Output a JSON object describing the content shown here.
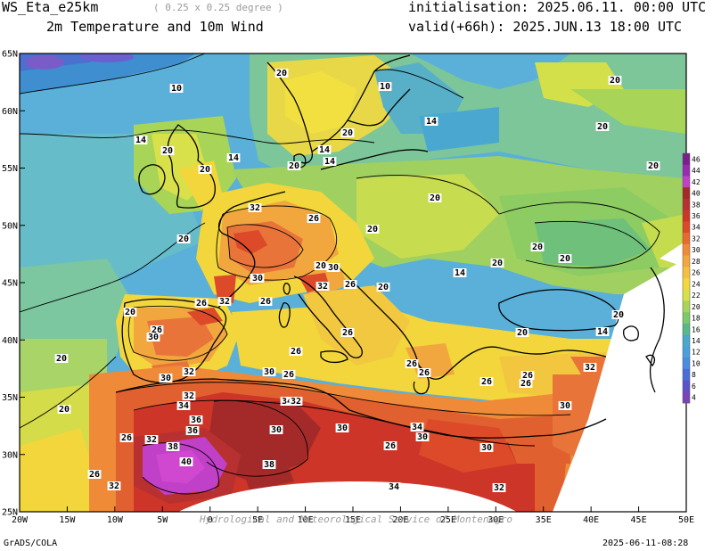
{
  "header": {
    "model": "WS_Eta_e25km",
    "resolution": "( 0.25 x 0.25 degree )",
    "product": "2m Temperature and 10m Wind",
    "initialisation": "initialisation: 2025.06.11. 00:00 UTC",
    "valid": "valid(+66h): 2025.JUN.13 18:00 UTC"
  },
  "footer": {
    "left": "GrADS/COLA",
    "right": "2025-06-11-08:28",
    "watermark": "Hydrological and Meteorological Service of Montenegro"
  },
  "axes": {
    "lat_labels": [
      "65N",
      "60N",
      "55N",
      "50N",
      "45N",
      "40N",
      "35N",
      "30N",
      "25N"
    ],
    "lon_labels": [
      "20W",
      "15W",
      "10W",
      "5W",
      "0",
      "5E",
      "10E",
      "15E",
      "20E",
      "25E",
      "30E",
      "35E",
      "40E",
      "45E",
      "50E"
    ]
  },
  "legend": {
    "levels": [
      "46",
      "44",
      "42",
      "40",
      "38",
      "36",
      "34",
      "32",
      "30",
      "28",
      "26",
      "24",
      "22",
      "20",
      "18",
      "16",
      "14",
      "12",
      "10",
      "8",
      "6",
      "4"
    ],
    "colors": [
      "#7a1f8c",
      "#9a2ab0",
      "#c040c8",
      "#a42a2a",
      "#b83030",
      "#cc3528",
      "#dc4a2a",
      "#e86a30",
      "#ef8a38",
      "#f2a63e",
      "#f4c040",
      "#f2d83c",
      "#d8e04a",
      "#a8d458",
      "#7cc86a",
      "#58b88a",
      "#4aa8c8",
      "#4aa0dc",
      "#4a8ce0",
      "#4a6ed8",
      "#5a52c8",
      "#7a44b8"
    ]
  },
  "contour_labels": [
    {
      "text": "20"
    },
    {
      "text": "10"
    },
    {
      "text": "10"
    },
    {
      "text": "20"
    },
    {
      "text": "14"
    },
    {
      "text": "20"
    },
    {
      "text": "20"
    },
    {
      "text": "20"
    },
    {
      "text": "14"
    },
    {
      "text": "20"
    },
    {
      "text": "14"
    },
    {
      "text": "14"
    },
    {
      "text": "20"
    },
    {
      "text": "14"
    },
    {
      "text": "20"
    },
    {
      "text": "20"
    },
    {
      "text": "20"
    },
    {
      "text": "32"
    },
    {
      "text": "26"
    },
    {
      "text": "20"
    },
    {
      "text": "20"
    },
    {
      "text": "20"
    },
    {
      "text": "20"
    },
    {
      "text": "20"
    },
    {
      "text": "30"
    },
    {
      "text": "20"
    },
    {
      "text": "30"
    },
    {
      "text": "32"
    },
    {
      "text": "26"
    },
    {
      "text": "20"
    },
    {
      "text": "14"
    },
    {
      "text": "20"
    },
    {
      "text": "32"
    },
    {
      "text": "26"
    },
    {
      "text": "26"
    },
    {
      "text": "20"
    },
    {
      "text": "26"
    },
    {
      "text": "30"
    },
    {
      "text": "26"
    },
    {
      "text": "20"
    },
    {
      "text": "14"
    },
    {
      "text": "20"
    },
    {
      "text": "26"
    },
    {
      "text": "26"
    },
    {
      "text": "26"
    },
    {
      "text": "32"
    },
    {
      "text": "32"
    },
    {
      "text": "30"
    },
    {
      "text": "30"
    },
    {
      "text": "26"
    },
    {
      "text": "26"
    },
    {
      "text": "26"
    },
    {
      "text": "26"
    },
    {
      "text": "30"
    },
    {
      "text": "20"
    },
    {
      "text": "32"
    },
    {
      "text": "34"
    },
    {
      "text": "34"
    },
    {
      "text": "32"
    },
    {
      "text": "36"
    },
    {
      "text": "30"
    },
    {
      "text": "30"
    },
    {
      "text": "26"
    },
    {
      "text": "32"
    },
    {
      "text": "34"
    },
    {
      "text": "26"
    },
    {
      "text": "30"
    },
    {
      "text": "30"
    },
    {
      "text": "38"
    },
    {
      "text": "36"
    },
    {
      "text": "40"
    },
    {
      "text": "38"
    },
    {
      "text": "26"
    },
    {
      "text": "32"
    },
    {
      "text": "34"
    },
    {
      "text": "32"
    }
  ]
}
